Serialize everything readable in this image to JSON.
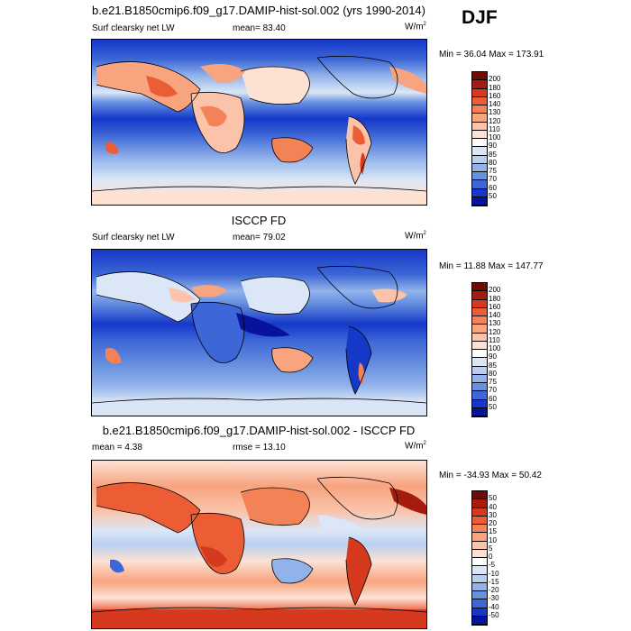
{
  "season": "DJF",
  "panels": [
    {
      "id": "model",
      "title": "b.e21.B1850cmip6.f09_g17.DAMIP-hist-sol.002 (yrs 1990-2014)",
      "variable": "Surf clearsky net LW",
      "left_stat": "",
      "mean_label": "mean=  83.40",
      "units_base": "W/m",
      "units_exp": "2",
      "minmax": "Min =  36.04 Max = 173.91",
      "colorbar": {
        "levels": [
          "200",
          "180",
          "160",
          "140",
          "130",
          "120",
          "110",
          "100",
          "90",
          "85",
          "80",
          "75",
          "70",
          "60",
          "50"
        ],
        "colors": [
          "#6e0a07",
          "#a61b0f",
          "#d53a1f",
          "#ec5d35",
          "#f38256",
          "#f7a47f",
          "#fac3aa",
          "#fde2d4",
          "#ffffff",
          "#dbe7f7",
          "#b9cff0",
          "#92b3ea",
          "#6891e0",
          "#3d67d6",
          "#1538c8",
          "#07139c"
        ]
      }
    },
    {
      "id": "obs",
      "title": "ISCCP FD",
      "variable": "Surf clearsky net LW",
      "left_stat": "",
      "mean_label": "mean=  79.02",
      "units_base": "W/m",
      "units_exp": "2",
      "minmax": "Min =  11.88 Max = 147.77",
      "colorbar": {
        "levels": [
          "200",
          "180",
          "160",
          "140",
          "130",
          "120",
          "110",
          "100",
          "90",
          "85",
          "80",
          "75",
          "70",
          "60",
          "50"
        ],
        "colors": [
          "#6e0a07",
          "#a61b0f",
          "#d53a1f",
          "#ec5d35",
          "#f38256",
          "#f7a47f",
          "#fac3aa",
          "#fde2d4",
          "#ffffff",
          "#dbe7f7",
          "#b9cff0",
          "#92b3ea",
          "#6891e0",
          "#3d67d6",
          "#1538c8",
          "#07139c"
        ]
      }
    },
    {
      "id": "diff",
      "title": "b.e21.B1850cmip6.f09_g17.DAMIP-hist-sol.002 - ISCCP FD",
      "variable": "",
      "left_stat": "mean =   4.38",
      "mean_label": "rmse =  13.10",
      "units_base": "W/m",
      "units_exp": "2",
      "minmax": "Min = -34.93 Max =  50.42",
      "colorbar": {
        "levels": [
          "50",
          "40",
          "30",
          "20",
          "15",
          "10",
          "5",
          "0",
          "-5",
          "-10",
          "-15",
          "-20",
          "-30",
          "-40",
          "-50"
        ],
        "colors": [
          "#6e0a07",
          "#a61b0f",
          "#d53a1f",
          "#ec5d35",
          "#f38256",
          "#f7a47f",
          "#fac3aa",
          "#fde2d4",
          "#ffffff",
          "#dbe7f7",
          "#b9cff0",
          "#92b3ea",
          "#6891e0",
          "#3d67d6",
          "#1538c8",
          "#07139c"
        ]
      }
    }
  ]
}
